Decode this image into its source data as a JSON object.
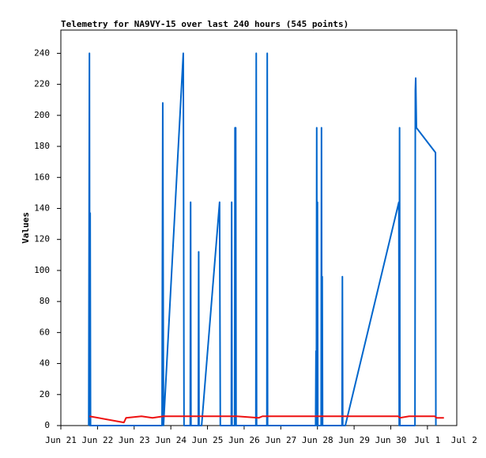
{
  "chart_data": {
    "type": "line",
    "title": "Telemetry for NA9VY-15 over last 240 hours (545 points)",
    "y_label": "Values",
    "xlim": [
      21,
      31.8
    ],
    "xticks": [
      {
        "value": 21,
        "label": "Jun 21"
      },
      {
        "value": 22,
        "label": "Jun 22"
      },
      {
        "value": 23,
        "label": "Jun 23"
      },
      {
        "value": 24,
        "label": "Jun 24"
      },
      {
        "value": 25,
        "label": "Jun 25"
      },
      {
        "value": 26,
        "label": "Jun 26"
      },
      {
        "value": 27,
        "label": "Jun 27"
      },
      {
        "value": 28,
        "label": "Jun 28"
      },
      {
        "value": 29,
        "label": "Jun 29"
      },
      {
        "value": 30,
        "label": "Jun 30"
      },
      {
        "value": 31,
        "label": "Jul 1"
      },
      {
        "value": 32,
        "label": "Jul 2"
      }
    ],
    "ylim": [
      0,
      255
    ],
    "yticks": [
      0,
      20,
      40,
      60,
      80,
      100,
      120,
      140,
      160,
      180,
      200,
      220,
      240
    ],
    "grid": false,
    "series": [
      {
        "color": "#0066cc",
        "x": [
          21.76,
          21.78,
          21.79,
          21.8,
          21.81,
          23.76,
          23.78,
          23.8,
          24.34,
          24.36,
          24.53,
          24.54,
          24.55,
          24.75,
          24.76,
          24.77,
          24.84,
          25.33,
          25.35,
          25.65,
          25.66,
          25.67,
          25.74,
          25.75,
          25.76,
          25.77,
          25.78,
          26.32,
          26.33,
          26.34,
          26.62,
          26.63,
          26.64,
          27.95,
          27.96,
          27.97,
          27.98,
          27.99,
          28.0,
          28.01,
          28.1,
          28.11,
          28.12,
          28.13,
          28.14,
          28.67,
          28.68,
          28.69,
          28.76,
          30.22,
          30.23,
          30.24,
          30.25,
          30.66,
          30.67,
          30.68,
          30.7,
          31.22,
          31.23
        ],
        "values": [
          0,
          240,
          0,
          137,
          0,
          0,
          208,
          0,
          240,
          0,
          0,
          144,
          0,
          0,
          112,
          0,
          0,
          144,
          0,
          0,
          144,
          0,
          0,
          192,
          0,
          192,
          0,
          0,
          240,
          0,
          0,
          240,
          0,
          0,
          48,
          0,
          192,
          0,
          144,
          0,
          0,
          192,
          0,
          96,
          0,
          0,
          96,
          0,
          0,
          144,
          0,
          192,
          0,
          0,
          216,
          224,
          192,
          176,
          0
        ]
      },
      {
        "color": "#ee1111",
        "x": [
          21.78,
          22.72,
          22.78,
          23.2,
          23.5,
          23.8,
          25.8,
          26.4,
          26.5,
          30.2,
          30.25,
          30.5,
          31.2,
          31.25,
          31.45
        ],
        "values": [
          6,
          2,
          5,
          6,
          5,
          6,
          6,
          5,
          6,
          6,
          5,
          6,
          6,
          5,
          5
        ]
      }
    ]
  }
}
